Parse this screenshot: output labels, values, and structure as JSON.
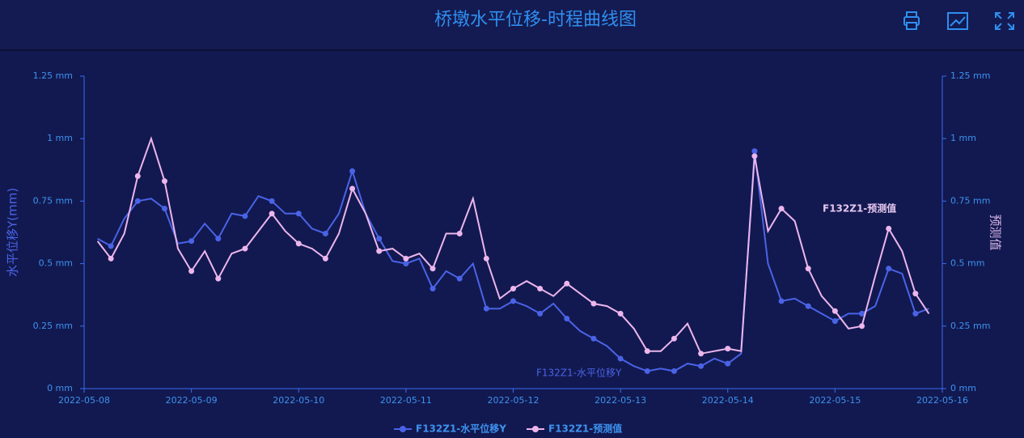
{
  "chart_data": {
    "type": "line",
    "title": "桥墩水平位移-时程曲线图",
    "y_label": "水平位移Y(mm)",
    "y2_label": "预测值",
    "categories": [
      "2022-05-08",
      null,
      null,
      null,
      null,
      null,
      null,
      null,
      "2022-05-09",
      null,
      null,
      null,
      null,
      null,
      null,
      null,
      "2022-05-10",
      null,
      null,
      null,
      null,
      null,
      null,
      null,
      "2022-05-11",
      null,
      null,
      null,
      null,
      null,
      null,
      null,
      "2022-05-12",
      null,
      null,
      null,
      null,
      null,
      null,
      null,
      "2022-05-13",
      null,
      null,
      null,
      null,
      null,
      null,
      null,
      "2022-05-14",
      null,
      null,
      null,
      null,
      null,
      null,
      null,
      "2022-05-15",
      null,
      null,
      null,
      null,
      null,
      null,
      null,
      "2022-05-16"
    ],
    "series": [
      {
        "name": "F132Z1-水平位移Y",
        "color": "#4a63e6",
        "axis": "y",
        "values": [
          null,
          0.6,
          0.57,
          0.68,
          0.75,
          0.76,
          0.72,
          0.58,
          0.59,
          0.66,
          0.6,
          0.7,
          0.69,
          0.77,
          0.75,
          0.7,
          0.7,
          0.64,
          0.62,
          0.7,
          0.87,
          0.7,
          0.6,
          0.51,
          0.5,
          0.52,
          0.4,
          0.47,
          0.44,
          0.5,
          0.32,
          0.32,
          0.35,
          0.33,
          0.3,
          0.34,
          0.28,
          0.23,
          0.2,
          0.17,
          0.12,
          0.09,
          0.07,
          0.08,
          0.07,
          0.1,
          0.09,
          0.12,
          0.1,
          0.14,
          0.95,
          0.5,
          0.35,
          0.36,
          0.33,
          0.3,
          0.27,
          0.3,
          0.3,
          0.33,
          0.48,
          0.46,
          0.3,
          0.32,
          null
        ]
      },
      {
        "name": "F132Z1-预测值",
        "color": "#ecb6ec",
        "axis": "y2",
        "values": [
          null,
          0.59,
          0.52,
          0.62,
          0.85,
          1.0,
          0.83,
          0.56,
          0.47,
          0.55,
          0.44,
          0.54,
          0.56,
          0.63,
          0.7,
          0.63,
          0.58,
          0.56,
          0.52,
          0.62,
          0.8,
          0.7,
          0.55,
          0.56,
          0.52,
          0.54,
          0.48,
          0.62,
          0.62,
          0.76,
          0.52,
          0.36,
          0.4,
          0.43,
          0.4,
          0.37,
          0.42,
          0.38,
          0.34,
          0.33,
          0.3,
          0.24,
          0.15,
          0.15,
          0.2,
          0.26,
          0.14,
          0.15,
          0.16,
          0.15,
          0.93,
          0.63,
          0.72,
          0.67,
          0.48,
          0.37,
          0.31,
          0.24,
          0.25,
          0.45,
          0.64,
          0.55,
          0.38,
          0.3,
          null
        ]
      }
    ],
    "ylim": [
      0,
      1.25
    ],
    "yticks": [
      {
        "value": 0,
        "label": "0 mm"
      },
      {
        "value": 0.25,
        "label": "0.25 mm"
      },
      {
        "value": 0.5,
        "label": "0.5 mm"
      },
      {
        "value": 0.75,
        "label": "0.75 mm"
      },
      {
        "value": 1,
        "label": "1 mm"
      },
      {
        "value": 1.25,
        "label": "1.25 mm"
      }
    ],
    "y2lim": [
      0,
      1.25
    ],
    "y2ticks": [
      {
        "value": 0,
        "label": "0 mm"
      },
      {
        "value": 0.25,
        "label": "0.25 mm"
      },
      {
        "value": 0.5,
        "label": "0.5 mm"
      },
      {
        "value": 0.75,
        "label": "0.75 mm"
      },
      {
        "value": 1,
        "label": "1 mm"
      },
      {
        "value": 1.25,
        "label": "1.25 mm"
      }
    ],
    "grid": false
  }
}
